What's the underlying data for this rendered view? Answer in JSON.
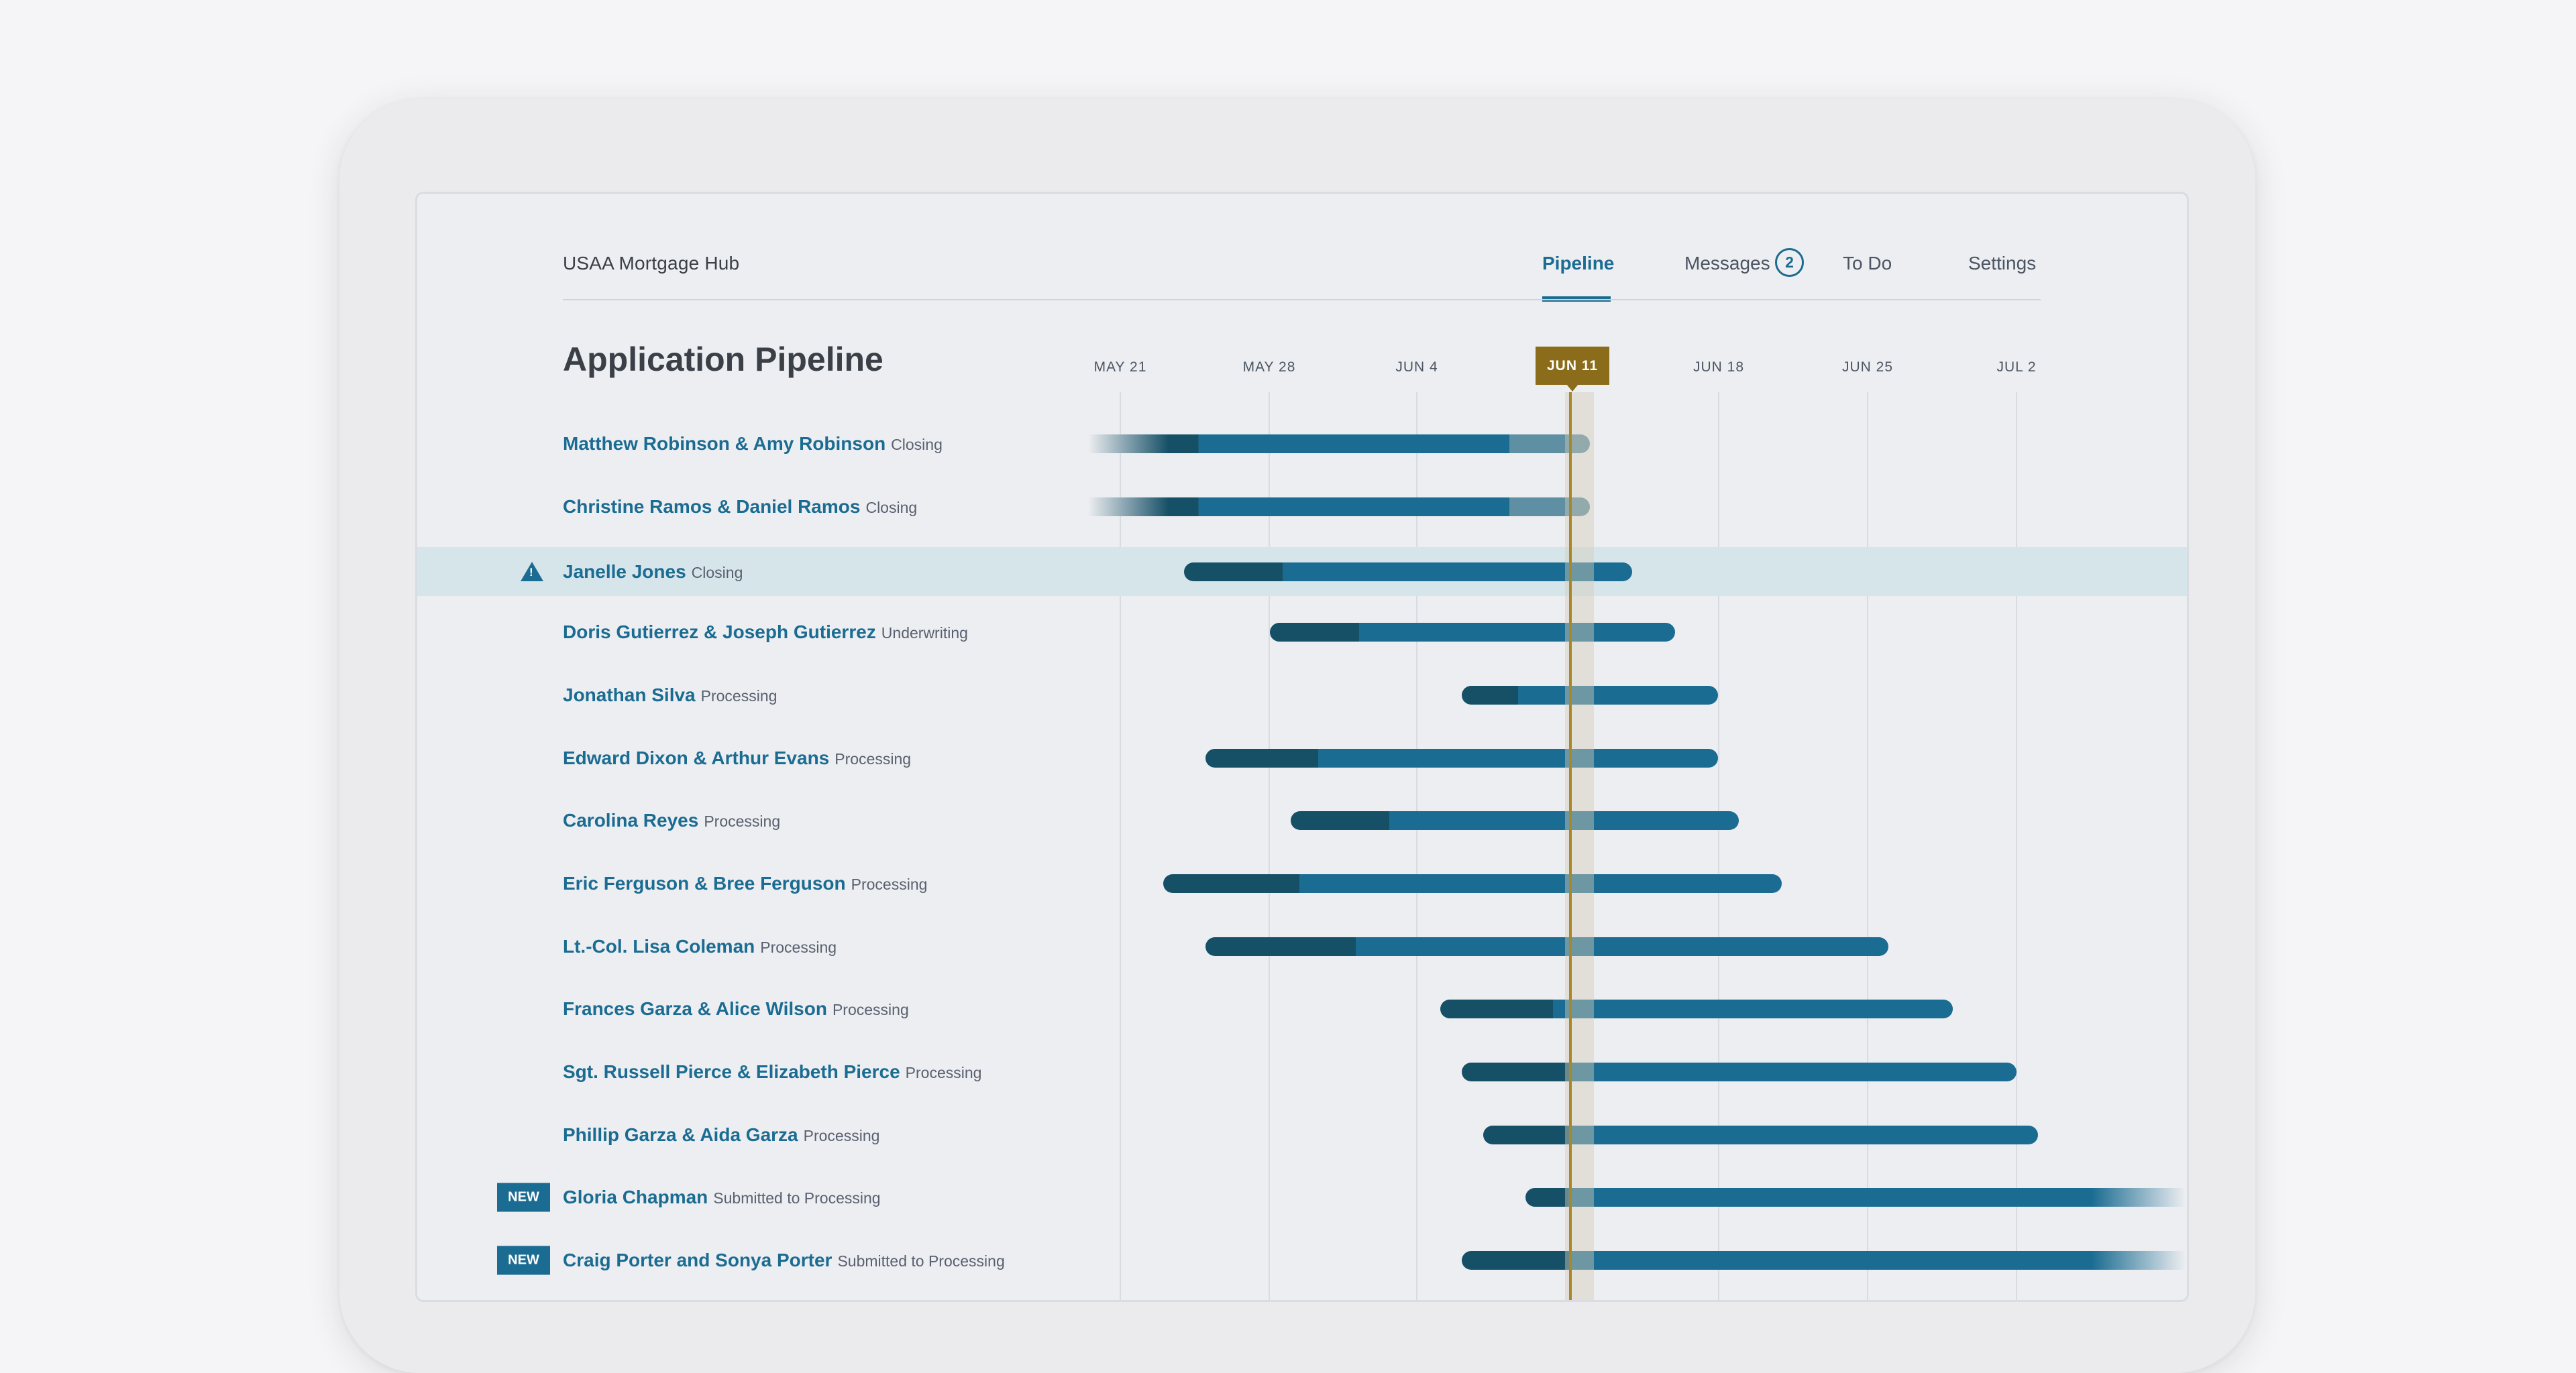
{
  "app": {
    "title": "USAA Mortgage Hub"
  },
  "nav": {
    "tabs": [
      {
        "label": "Pipeline",
        "active": true
      },
      {
        "label": "Messages",
        "count": "2"
      },
      {
        "label": "To Do"
      },
      {
        "label": "Settings"
      }
    ]
  },
  "page": {
    "title": "Application Pipeline"
  },
  "timeline": {
    "dates": [
      "MAY 21",
      "MAY 28",
      "JUN 4",
      "JUN 11",
      "JUN 18",
      "JUN 25",
      "JUL 2"
    ],
    "today": "JUN 11"
  },
  "colors": {
    "accent": "#1b6c92",
    "dark_segment": "#155067",
    "light_segment": "#5e8fa3",
    "today": "#8a6c1a",
    "highlight_row": "#d6e5ea"
  },
  "applications": [
    {
      "name": "Matthew Robinson & Amy Robinson",
      "status": "Closing",
      "start": "May 17",
      "end": "Jun 12",
      "fade_start": true
    },
    {
      "name": "Christine Ramos & Daniel Ramos",
      "status": "Closing",
      "start": "May 17",
      "end": "Jun 12",
      "fade_start": true
    },
    {
      "name": "Janelle Jones",
      "status": "Closing",
      "start": "May 24",
      "end": "Jun 14",
      "highlighted": true,
      "warning": true
    },
    {
      "name": "Doris Gutierrez  & Joseph Gutierrez",
      "status": "Underwriting",
      "start": "May 28",
      "end": "Jun 16"
    },
    {
      "name": "Jonathan Silva",
      "status": "Processing",
      "start": "Jun 6",
      "end": "Jun 18"
    },
    {
      "name": "Edward Dixon & Arthur Evans",
      "status": "Processing",
      "start": "May 25",
      "end": "Jun 18"
    },
    {
      "name": "Carolina Reyes",
      "status": "Processing",
      "start": "May 29",
      "end": "Jun 19"
    },
    {
      "name": "Eric Ferguson & Bree Ferguson",
      "status": "Processing",
      "start": "May 23",
      "end": "Jun 21"
    },
    {
      "name": "Lt.-Col.  Lisa Coleman",
      "status": "Processing",
      "start": "May 25",
      "end": "Jun 26"
    },
    {
      "name": "Frances Garza & Alice Wilson",
      "status": "Processing",
      "start": "Jun 5",
      "end": "Jun 29"
    },
    {
      "name": "Sgt. Russell Pierce & Elizabeth Pierce",
      "status": "Processing",
      "start": "Jun 6",
      "end": "Jul 2"
    },
    {
      "name": "Phillip Garza & Aida Garza",
      "status": "Processing",
      "start": "Jun 7",
      "end": "Jul 3"
    },
    {
      "name": "Gloria Chapman",
      "status": "Submitted to Processing",
      "start": "Jun 9",
      "end": "Jul 9",
      "fade_end": true,
      "new": "NEW"
    },
    {
      "name": "Craig Porter and Sonya Porter",
      "status": "Submitted to Processing",
      "start": "Jun 6",
      "end": "Jul 9",
      "fade_end": true,
      "new": "NEW"
    }
  ]
}
